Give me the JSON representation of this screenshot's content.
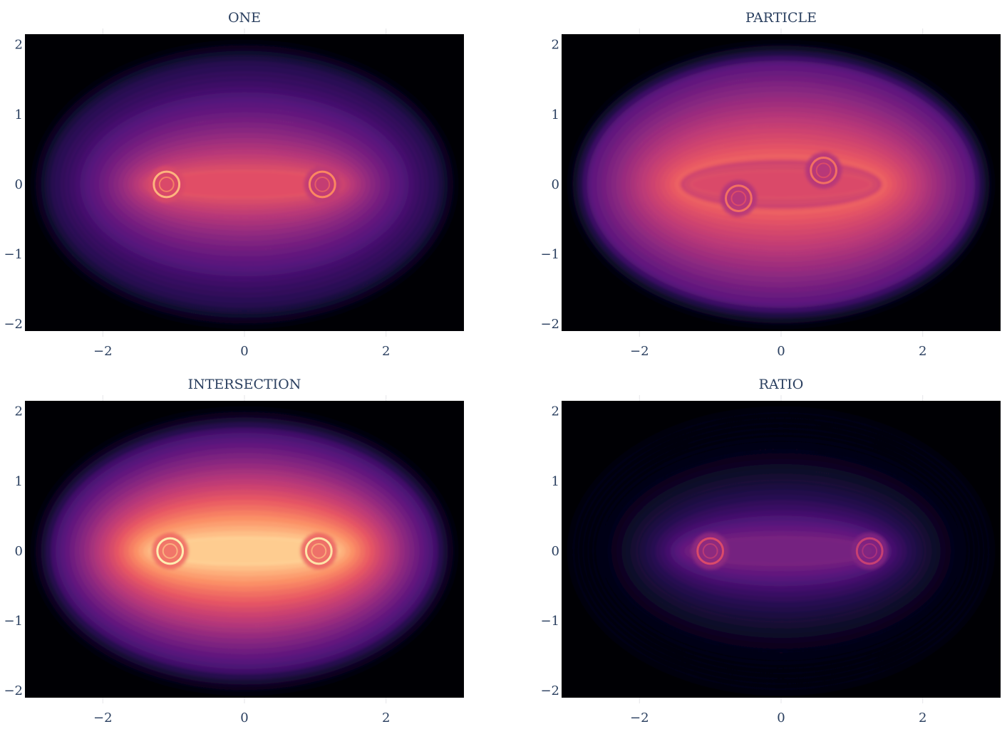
{
  "chart_data": [
    {
      "type": "heatmap",
      "title": "ONE",
      "xlabel": "",
      "ylabel": "",
      "xlim": [
        -3.1,
        3.1
      ],
      "ylim": [
        -2.1,
        2.15
      ],
      "x_ticks": [
        -2,
        0,
        2
      ],
      "x_tick_labels": [
        "−2",
        "0",
        "2"
      ],
      "y_ticks": [
        2,
        1,
        0,
        -1,
        -2
      ],
      "y_tick_labels": [
        "2",
        "1",
        "0",
        "−1",
        "−2"
      ],
      "colorscale": "magma",
      "background_color": "#000004",
      "grid": true,
      "peak_intensity": 0.62,
      "hotspots": [
        {
          "x": -1.1,
          "y": 0.0,
          "intensity": 0.85
        },
        {
          "x": 1.1,
          "y": 0.0,
          "intensity": 0.75
        }
      ]
    },
    {
      "type": "heatmap",
      "title": "PARTICLE",
      "xlabel": "",
      "ylabel": "",
      "xlim": [
        -3.1,
        3.1
      ],
      "ylim": [
        -2.1,
        2.15
      ],
      "x_ticks": [
        -2,
        0,
        2
      ],
      "x_tick_labels": [
        "−2",
        "0",
        "2"
      ],
      "y_ticks": [
        2,
        1,
        0,
        -1,
        -2
      ],
      "y_tick_labels": [
        "2",
        "1",
        "0",
        "−1",
        "−2"
      ],
      "colorscale": "magma",
      "background_color": "#000004",
      "grid": true,
      "peak_intensity": 0.72,
      "hotspots": [
        {
          "x": -0.6,
          "y": -0.2,
          "intensity": 0.7
        },
        {
          "x": 0.6,
          "y": 0.2,
          "intensity": 0.7
        }
      ]
    },
    {
      "type": "heatmap",
      "title": "INTERSECTION",
      "xlabel": "",
      "ylabel": "",
      "xlim": [
        -3.1,
        3.1
      ],
      "ylim": [
        -2.1,
        2.15
      ],
      "x_ticks": [
        -2,
        0,
        2
      ],
      "x_tick_labels": [
        "−2",
        "0",
        "2"
      ],
      "y_ticks": [
        2,
        1,
        0,
        -1,
        -2
      ],
      "y_tick_labels": [
        "2",
        "1",
        "0",
        "−1",
        "−2"
      ],
      "colorscale": "magma",
      "background_color": "#000004",
      "grid": true,
      "peak_intensity": 0.9,
      "hotspots": [
        {
          "x": -1.05,
          "y": 0.0,
          "intensity": 0.97
        },
        {
          "x": 1.05,
          "y": 0.0,
          "intensity": 0.95
        }
      ]
    },
    {
      "type": "heatmap",
      "title": "RATIO",
      "xlabel": "",
      "ylabel": "",
      "xlim": [
        -3.1,
        3.1
      ],
      "ylim": [
        -2.1,
        2.15
      ],
      "x_ticks": [
        -2,
        0,
        2
      ],
      "x_tick_labels": [
        "−2",
        "0",
        "2"
      ],
      "y_ticks": [
        2,
        1,
        0,
        -1,
        -2
      ],
      "y_tick_labels": [
        "2",
        "1",
        "0",
        "−1",
        "−2"
      ],
      "colorscale": "magma",
      "background_color": "#000004",
      "grid": true,
      "peak_intensity": 0.35,
      "hotspots": [
        {
          "x": -1.0,
          "y": 0.0,
          "intensity": 0.6
        },
        {
          "x": 1.25,
          "y": 0.0,
          "intensity": 0.55
        }
      ]
    }
  ]
}
